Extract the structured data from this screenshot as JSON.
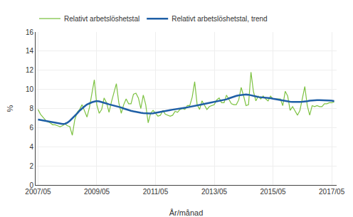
{
  "chart_data": {
    "type": "line",
    "xlabel": "År/månad",
    "ylabel": "%",
    "categories": [
      "2007/05",
      null,
      null,
      null,
      null,
      null,
      null,
      null,
      null,
      null,
      null,
      null,
      null,
      null,
      null,
      null,
      null,
      null,
      null,
      null,
      null,
      null,
      null,
      null,
      "2009/05",
      null,
      null,
      null,
      null,
      null,
      null,
      null,
      null,
      null,
      null,
      null,
      null,
      null,
      null,
      null,
      null,
      null,
      null,
      null,
      null,
      null,
      null,
      null,
      "2011/05",
      null,
      null,
      null,
      null,
      null,
      null,
      null,
      null,
      null,
      null,
      null,
      null,
      null,
      null,
      null,
      null,
      null,
      null,
      null,
      null,
      null,
      null,
      null,
      "2013/05",
      null,
      null,
      null,
      null,
      null,
      null,
      null,
      null,
      null,
      null,
      null,
      null,
      null,
      null,
      null,
      null,
      null,
      null,
      null,
      null,
      null,
      null,
      null,
      "2015/05",
      null,
      null,
      null,
      null,
      null,
      null,
      null,
      null,
      null,
      null,
      null,
      null,
      null,
      null,
      null,
      null,
      null,
      null,
      null,
      null,
      null,
      null,
      null,
      "2017/05",
      null
    ],
    "series": [
      {
        "name": "Relativt arbetslöshetstal",
        "color": "#7dc242",
        "values": [
          7.9,
          7.4,
          7.1,
          6.8,
          6.6,
          6.5,
          6.3,
          6.3,
          6.2,
          6.1,
          6.2,
          6.4,
          6.2,
          6.1,
          5.2,
          6.8,
          7.6,
          7.9,
          8.4,
          7.7,
          7.1,
          8.1,
          9.6,
          11.0,
          8.4,
          7.5,
          7.9,
          9.1,
          8.6,
          7.6,
          8.7,
          9.6,
          10.6,
          8.6,
          7.5,
          8.4,
          9.0,
          8.5,
          8.5,
          9.5,
          9.6,
          9.1,
          8.0,
          9.4,
          8.4,
          6.5,
          7.5,
          7.8,
          7.5,
          7.2,
          7.3,
          7.8,
          7.4,
          7.3,
          7.2,
          7.3,
          7.7,
          7.6,
          7.9,
          8.0,
          7.9,
          8.3,
          8.3,
          9.2,
          10.8,
          8.4,
          7.9,
          8.8,
          8.3,
          7.9,
          8.2,
          8.3,
          8.4,
          8.9,
          9.1,
          8.6,
          8.6,
          9.4,
          9.0,
          8.5,
          8.4,
          8.4,
          8.9,
          10.2,
          9.3,
          8.3,
          8.4,
          11.8,
          9.8,
          8.8,
          9.3,
          9.0,
          9.3,
          9.0,
          8.8,
          9.3,
          9.0,
          9.0,
          9.0,
          9.0,
          8.3,
          9.8,
          9.3,
          7.8,
          8.2,
          7.8,
          7.3,
          7.8,
          9.2,
          10.3,
          8.3,
          7.3,
          8.3,
          8.2,
          8.3,
          8.2,
          8.2,
          8.5,
          8.5,
          8.6,
          8.6,
          8.7
        ]
      },
      {
        "name": "Relativt arbetslöshetstal, trend",
        "color": "#1f5fa6",
        "values": [
          6.85,
          6.8,
          6.75,
          6.72,
          6.68,
          6.62,
          6.57,
          6.52,
          6.47,
          6.42,
          6.38,
          6.4,
          6.52,
          6.72,
          6.95,
          7.18,
          7.48,
          7.78,
          8.02,
          8.22,
          8.42,
          8.55,
          8.65,
          8.72,
          8.78,
          8.74,
          8.68,
          8.6,
          8.52,
          8.44,
          8.38,
          8.3,
          8.24,
          8.18,
          8.1,
          8.0,
          7.9,
          7.84,
          7.76,
          7.7,
          7.64,
          7.6,
          7.56,
          7.52,
          7.5,
          7.48,
          7.48,
          7.5,
          7.54,
          7.58,
          7.63,
          7.68,
          7.73,
          7.78,
          7.83,
          7.88,
          7.93,
          7.98,
          8.02,
          8.06,
          8.08,
          8.12,
          8.18,
          8.23,
          8.28,
          8.33,
          8.38,
          8.43,
          8.48,
          8.53,
          8.58,
          8.63,
          8.68,
          8.73,
          8.78,
          8.83,
          8.88,
          8.96,
          9.06,
          9.16,
          9.26,
          9.32,
          9.38,
          9.42,
          9.45,
          9.46,
          9.44,
          9.4,
          9.34,
          9.27,
          9.2,
          9.18,
          9.15,
          9.12,
          9.1,
          9.08,
          9.02,
          8.97,
          8.92,
          8.87,
          8.82,
          8.77,
          8.72,
          8.7,
          8.68,
          8.67,
          8.67,
          8.68,
          8.7,
          8.72,
          8.77,
          8.82,
          8.85,
          8.87,
          8.87,
          8.87,
          8.87,
          8.85,
          8.84,
          8.83,
          8.81,
          8.79
        ]
      }
    ],
    "ylim": [
      0,
      16
    ],
    "yticks": [
      0,
      2,
      4,
      6,
      8,
      10,
      12,
      14,
      16
    ],
    "grid": true,
    "legend": "upper left"
  }
}
